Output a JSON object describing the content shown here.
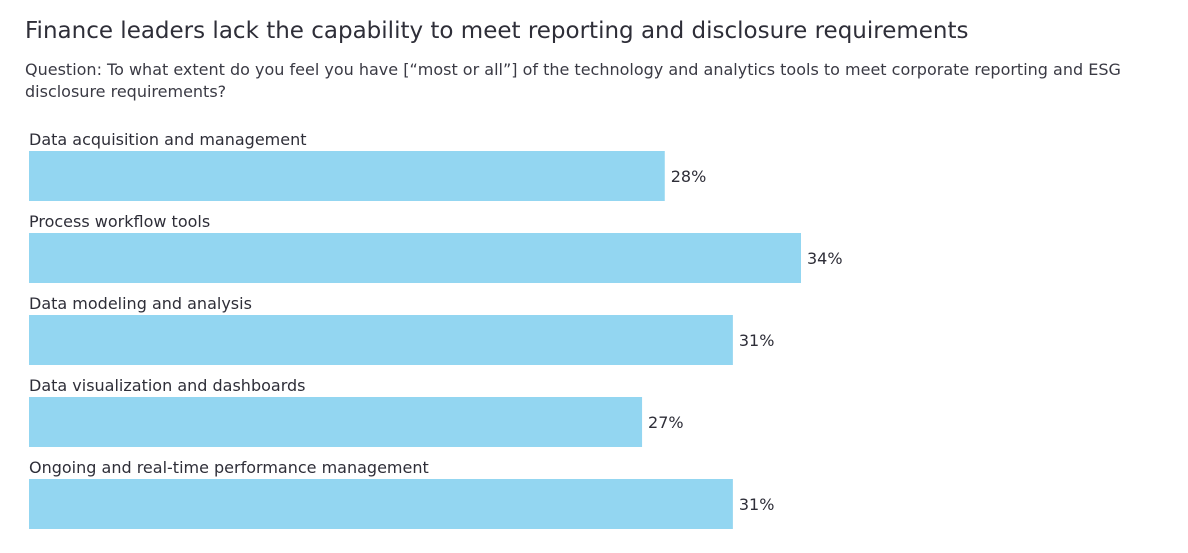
{
  "title": "Finance leaders lack the capability to meet reporting and disclosure requirements",
  "subtitle": "Question: To what extent do you feel you have [“most or all”] of the technology and analytics tools to meet corporate reporting and ESG disclosure requirements?",
  "colors": {
    "bar": "#93d6f1",
    "text": "#2e2e38"
  },
  "chart_data": {
    "type": "bar",
    "orientation": "horizontal",
    "title": "Finance leaders lack the capability to meet reporting and disclosure requirements",
    "subtitle": "Question: To what extent do you feel you have [“most or all”] of the technology and analytics tools to meet corporate reporting and ESG disclosure requirements?",
    "categories": [
      "Data acquisition and management",
      "Process workflow tools",
      "Data modeling and analysis",
      "Data visualization and dashboards",
      "Ongoing and real-time performance management"
    ],
    "values": [
      28,
      34,
      31,
      27,
      31
    ],
    "value_labels": [
      "28%",
      "34%",
      "31%",
      "27%",
      "31%"
    ],
    "unit": "%",
    "xlabel": "",
    "ylabel": "",
    "xlim": [
      0,
      34
    ],
    "grid": false,
    "legend": "none"
  }
}
